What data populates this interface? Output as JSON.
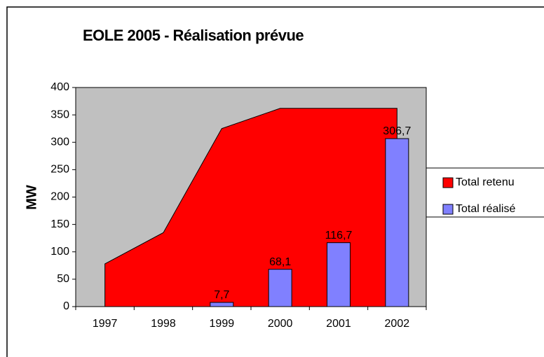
{
  "chart_data": {
    "type": "bar",
    "title": "EOLE 2005 - Réalisation prévue",
    "y_label": "MW",
    "categories": [
      "1997",
      "1998",
      "1999",
      "2000",
      "2001",
      "2002"
    ],
    "series": [
      {
        "name": "Total retenu",
        "type": "area",
        "color": "#ff0000",
        "values": [
          78,
          135,
          325,
          362,
          362,
          362
        ]
      },
      {
        "name": "Total réalisé",
        "type": "bar",
        "color": "#8080ff",
        "values": [
          null,
          null,
          7.7,
          68.1,
          116.7,
          306.7
        ],
        "value_labels": [
          null,
          null,
          "7,7",
          "68,1",
          "116,7",
          "306,7"
        ]
      }
    ],
    "ylim": [
      0,
      400
    ],
    "yticks": [
      0,
      50,
      100,
      150,
      200,
      250,
      300,
      350,
      400
    ],
    "legend": "right"
  }
}
